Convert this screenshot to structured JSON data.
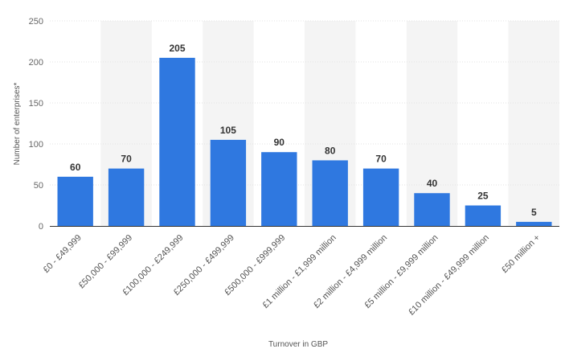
{
  "chart_data": {
    "type": "bar",
    "categories": [
      "£0 - £49,999",
      "£50,000 - £99,999",
      "£100,000 - £249,999",
      "£250,000 - £499,999",
      "£500,000 - £999,999",
      "£1 million - £1,999 million",
      "£2 million - £4,999 million",
      "£5 million - £9,999 million",
      "£10 million - £49,999 million",
      "£50 million +"
    ],
    "values": [
      60,
      70,
      205,
      105,
      90,
      80,
      70,
      40,
      25,
      5
    ],
    "xlabel": "Turnover in GBP",
    "ylabel": "Number of enterprises*",
    "ylim": [
      0,
      250
    ],
    "yticks": [
      0,
      50,
      100,
      150,
      200,
      250
    ],
    "grid": true,
    "alternating_column_bands": true,
    "bar_color": "#2f78e0",
    "band_color": "#f4f4f4",
    "grid_color": "#e3e3e3",
    "axis_color": "#333333"
  }
}
